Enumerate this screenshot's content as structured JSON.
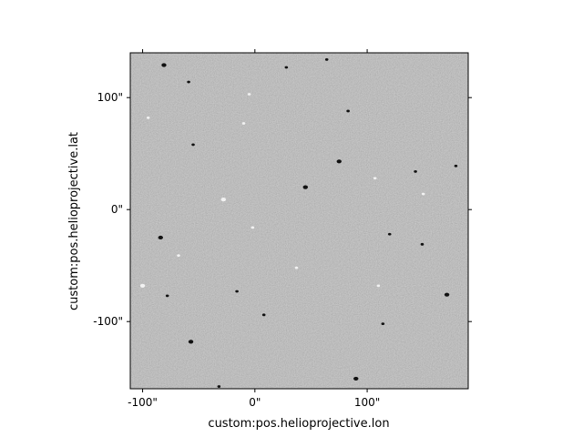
{
  "figure": {
    "background_color": "#ffffff",
    "image_background": "#808080"
  },
  "axes": {
    "xlabel": "custom:pos.helioprojective.lon",
    "ylabel": "custom:pos.helioprojective.lat",
    "xlim": [
      -111,
      190
    ],
    "ylim": [
      -160,
      140
    ],
    "x_ticks": [
      {
        "value": -100,
        "label": "-100\""
      },
      {
        "value": 0,
        "label": "0\""
      },
      {
        "value": 100,
        "label": "100\""
      }
    ],
    "y_ticks": [
      {
        "value": 100,
        "label": "100\""
      },
      {
        "value": 0,
        "label": "0\""
      },
      {
        "value": -100,
        "label": "-100\""
      }
    ],
    "ticks_on_all_sides": true
  },
  "image": {
    "description_kind": "magnetogram",
    "noise_seed": 7,
    "features": [
      {
        "x": -81,
        "y": 129,
        "polarity": "dark",
        "size": 3
      },
      {
        "x": 64,
        "y": 134,
        "polarity": "dark",
        "size": 2
      },
      {
        "x": 28,
        "y": 127,
        "polarity": "dark",
        "size": 2
      },
      {
        "x": -5,
        "y": 103,
        "polarity": "light",
        "size": 2
      },
      {
        "x": -59,
        "y": 114,
        "polarity": "dark",
        "size": 2
      },
      {
        "x": 83,
        "y": 88,
        "polarity": "dark",
        "size": 2
      },
      {
        "x": -95,
        "y": 82,
        "polarity": "light",
        "size": 2
      },
      {
        "x": -10,
        "y": 77,
        "polarity": "light",
        "size": 2
      },
      {
        "x": 75,
        "y": 43,
        "polarity": "dark",
        "size": 3
      },
      {
        "x": 143,
        "y": 34,
        "polarity": "dark",
        "size": 2
      },
      {
        "x": 179,
        "y": 39,
        "polarity": "dark",
        "size": 2
      },
      {
        "x": 45,
        "y": 20,
        "polarity": "dark",
        "size": 3
      },
      {
        "x": -28,
        "y": 9,
        "polarity": "light",
        "size": 3
      },
      {
        "x": 107,
        "y": 28,
        "polarity": "light",
        "size": 2
      },
      {
        "x": 150,
        "y": 14,
        "polarity": "light",
        "size": 2
      },
      {
        "x": -84,
        "y": -25,
        "polarity": "dark",
        "size": 3
      },
      {
        "x": 149,
        "y": -31,
        "polarity": "dark",
        "size": 2
      },
      {
        "x": -68,
        "y": -41,
        "polarity": "light",
        "size": 2
      },
      {
        "x": -100,
        "y": -68,
        "polarity": "light",
        "size": 3
      },
      {
        "x": -16,
        "y": -73,
        "polarity": "dark",
        "size": 2
      },
      {
        "x": 110,
        "y": -68,
        "polarity": "light",
        "size": 2
      },
      {
        "x": 171,
        "y": -76,
        "polarity": "dark",
        "size": 3
      },
      {
        "x": -78,
        "y": -77,
        "polarity": "dark",
        "size": 2
      },
      {
        "x": 8,
        "y": -94,
        "polarity": "dark",
        "size": 2
      },
      {
        "x": 114,
        "y": -102,
        "polarity": "dark",
        "size": 2
      },
      {
        "x": -57,
        "y": -118,
        "polarity": "dark",
        "size": 3
      },
      {
        "x": 90,
        "y": -151,
        "polarity": "dark",
        "size": 3
      },
      {
        "x": -32,
        "y": -158,
        "polarity": "dark",
        "size": 2
      },
      {
        "x": 37,
        "y": -52,
        "polarity": "light",
        "size": 2
      },
      {
        "x": -2,
        "y": -16,
        "polarity": "light",
        "size": 2
      },
      {
        "x": 120,
        "y": -22,
        "polarity": "dark",
        "size": 2
      },
      {
        "x": -55,
        "y": 58,
        "polarity": "dark",
        "size": 2
      }
    ]
  }
}
